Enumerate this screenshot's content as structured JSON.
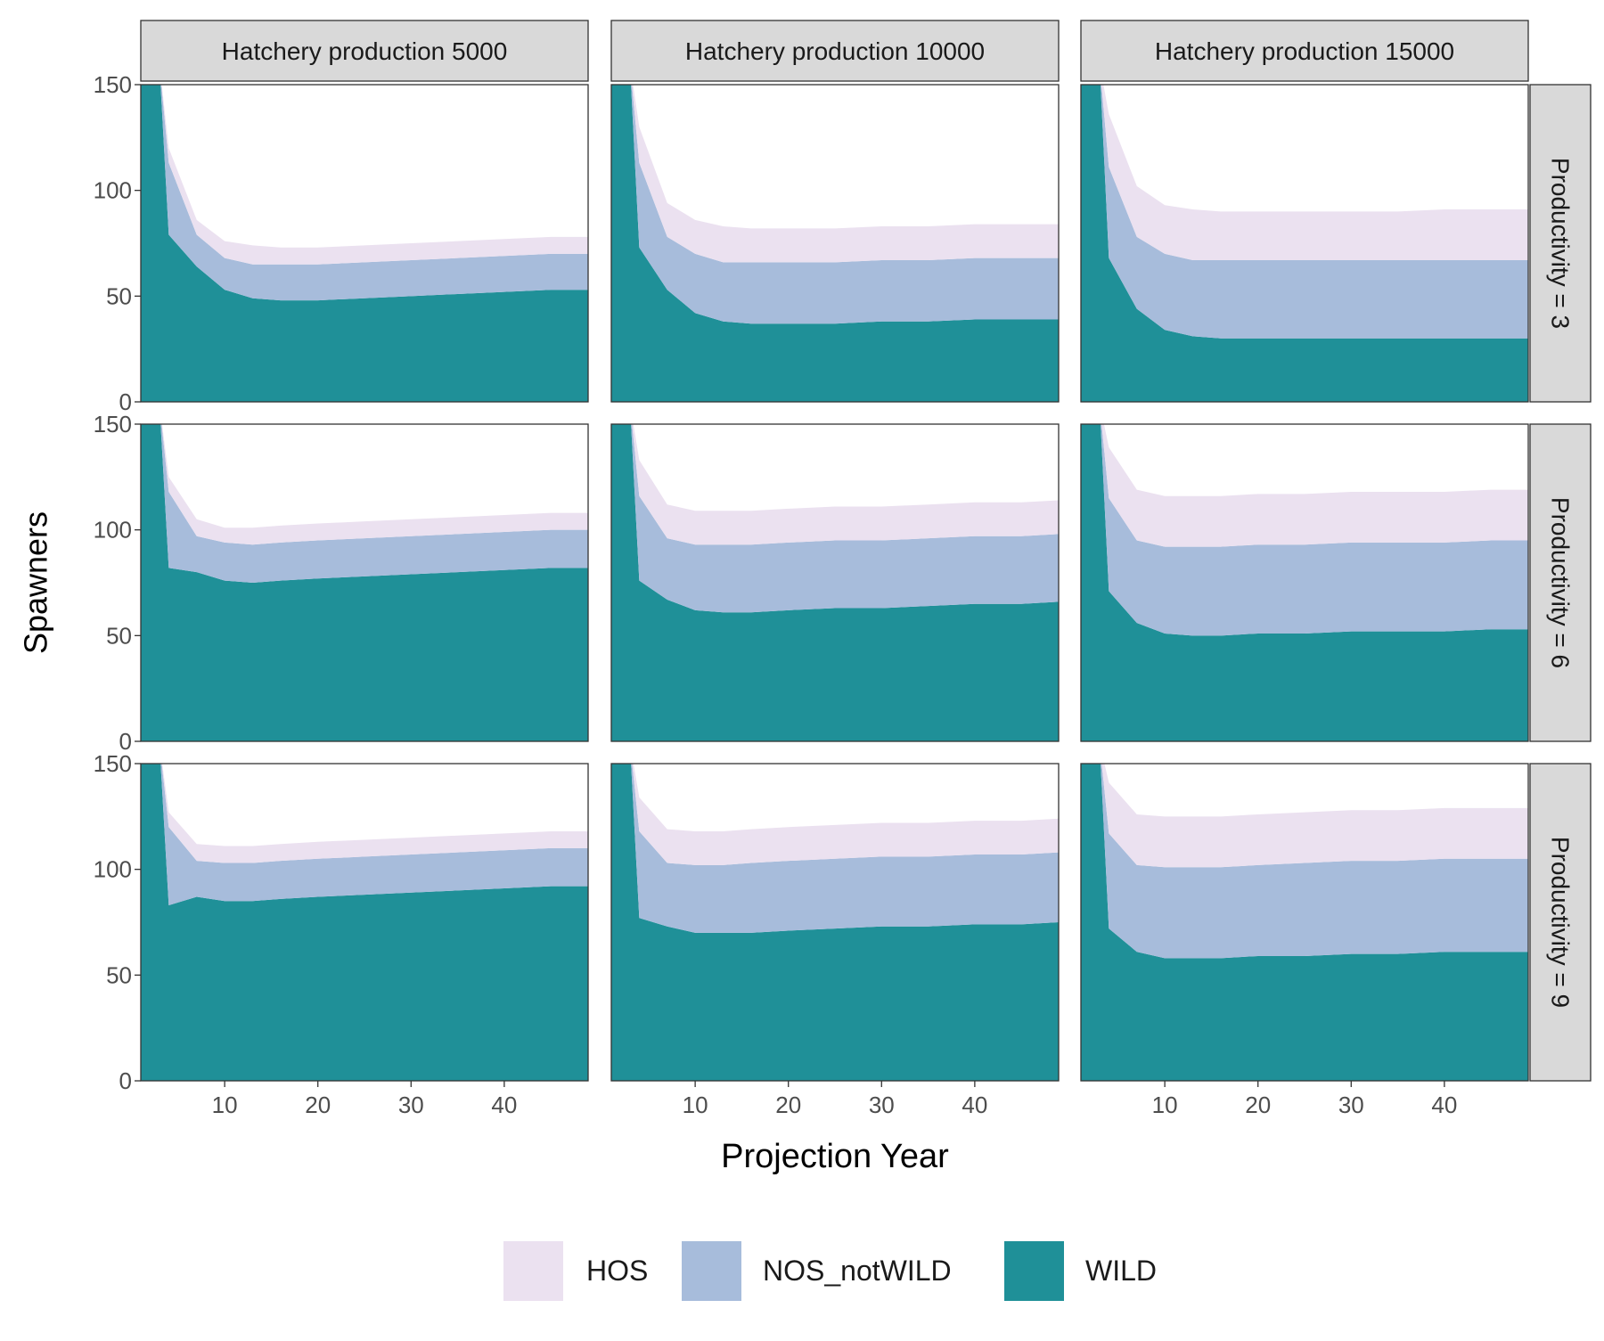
{
  "chart_data": {
    "type": "area",
    "stacked": true,
    "xlabel": "Projection Year",
    "ylabel": "Spawners",
    "xlim": [
      1,
      49
    ],
    "ylim": [
      0,
      150
    ],
    "x_ticks": [
      10,
      20,
      30,
      40
    ],
    "y_ticks": [
      0,
      50,
      100,
      150
    ],
    "grid": false,
    "legend_position": "bottom",
    "column_labels": [
      "Hatchery production 5000",
      "Hatchery production 10000",
      "Hatchery production 15000"
    ],
    "row_labels": [
      "Productivity = 3",
      "Productivity = 6",
      "Productivity = 9"
    ],
    "series_order": [
      "WILD",
      "NOS_notWILD",
      "HOS"
    ],
    "legend": [
      {
        "name": "HOS",
        "color": "#ebe1f0"
      },
      {
        "name": "NOS_notWILD",
        "color": "#a7bcdb"
      },
      {
        "name": "WILD",
        "color": "#1f9098"
      }
    ],
    "x": [
      1,
      3,
      4,
      7,
      10,
      13,
      16,
      20,
      25,
      30,
      35,
      40,
      45,
      49
    ],
    "panels": [
      {
        "row": 0,
        "col": 0,
        "WILD": [
          160,
          160,
          79,
          64,
          53,
          49,
          48,
          48,
          49,
          50,
          51,
          52,
          53,
          53
        ],
        "NOS_notWILD": [
          0,
          0,
          34,
          15,
          15,
          16,
          17,
          17,
          17,
          17,
          17,
          17,
          17,
          17
        ],
        "HOS": [
          0,
          0,
          7,
          7,
          8,
          9,
          8,
          8,
          8,
          8,
          8,
          8,
          8,
          8
        ]
      },
      {
        "row": 0,
        "col": 1,
        "WILD": [
          160,
          160,
          73,
          53,
          42,
          38,
          37,
          37,
          37,
          38,
          38,
          39,
          39,
          39
        ],
        "NOS_notWILD": [
          0,
          0,
          40,
          25,
          28,
          28,
          29,
          29,
          29,
          29,
          29,
          29,
          29,
          29
        ],
        "HOS": [
          0,
          0,
          17,
          16,
          16,
          17,
          16,
          16,
          16,
          16,
          16,
          16,
          16,
          16
        ]
      },
      {
        "row": 0,
        "col": 2,
        "WILD": [
          160,
          160,
          68,
          44,
          34,
          31,
          30,
          30,
          30,
          30,
          30,
          30,
          30,
          30
        ],
        "NOS_notWILD": [
          0,
          0,
          43,
          34,
          36,
          36,
          37,
          37,
          37,
          37,
          37,
          37,
          37,
          37
        ],
        "HOS": [
          0,
          0,
          25,
          24,
          23,
          24,
          23,
          23,
          23,
          23,
          23,
          24,
          24,
          24
        ]
      },
      {
        "row": 1,
        "col": 0,
        "WILD": [
          160,
          160,
          82,
          80,
          76,
          75,
          76,
          77,
          78,
          79,
          80,
          81,
          82,
          82
        ],
        "NOS_notWILD": [
          0,
          0,
          36,
          17,
          18,
          18,
          18,
          18,
          18,
          18,
          18,
          18,
          18,
          18
        ],
        "HOS": [
          0,
          0,
          7,
          8,
          7,
          8,
          8,
          8,
          8,
          8,
          8,
          8,
          8,
          8
        ]
      },
      {
        "row": 1,
        "col": 1,
        "WILD": [
          160,
          160,
          76,
          67,
          62,
          61,
          61,
          62,
          63,
          63,
          64,
          65,
          65,
          66
        ],
        "NOS_notWILD": [
          0,
          0,
          40,
          29,
          31,
          32,
          32,
          32,
          32,
          32,
          32,
          32,
          32,
          32
        ],
        "HOS": [
          0,
          0,
          17,
          16,
          16,
          16,
          16,
          16,
          16,
          16,
          16,
          16,
          16,
          16
        ]
      },
      {
        "row": 1,
        "col": 2,
        "WILD": [
          160,
          160,
          71,
          56,
          51,
          50,
          50,
          51,
          51,
          52,
          52,
          52,
          53,
          53
        ],
        "NOS_notWILD": [
          0,
          0,
          44,
          39,
          41,
          42,
          42,
          42,
          42,
          42,
          42,
          42,
          42,
          42
        ],
        "HOS": [
          0,
          0,
          24,
          24,
          24,
          24,
          24,
          24,
          24,
          24,
          24,
          24,
          24,
          24
        ]
      },
      {
        "row": 2,
        "col": 0,
        "WILD": [
          160,
          160,
          83,
          87,
          85,
          85,
          86,
          87,
          88,
          89,
          90,
          91,
          92,
          92
        ],
        "NOS_notWILD": [
          0,
          0,
          37,
          17,
          18,
          18,
          18,
          18,
          18,
          18,
          18,
          18,
          18,
          18
        ],
        "HOS": [
          0,
          0,
          7,
          8,
          8,
          8,
          8,
          8,
          8,
          8,
          8,
          8,
          8,
          8
        ]
      },
      {
        "row": 2,
        "col": 1,
        "WILD": [
          160,
          160,
          77,
          73,
          70,
          70,
          70,
          71,
          72,
          73,
          73,
          74,
          74,
          75
        ],
        "NOS_notWILD": [
          0,
          0,
          41,
          30,
          32,
          32,
          33,
          33,
          33,
          33,
          33,
          33,
          33,
          33
        ],
        "HOS": [
          0,
          0,
          16,
          16,
          16,
          16,
          16,
          16,
          16,
          16,
          16,
          16,
          16,
          16
        ]
      },
      {
        "row": 2,
        "col": 2,
        "WILD": [
          160,
          160,
          72,
          61,
          58,
          58,
          58,
          59,
          59,
          60,
          60,
          61,
          61,
          61
        ],
        "NOS_notWILD": [
          0,
          0,
          45,
          41,
          43,
          43,
          43,
          43,
          44,
          44,
          44,
          44,
          44,
          44
        ],
        "HOS": [
          0,
          0,
          24,
          24,
          24,
          24,
          24,
          24,
          24,
          24,
          24,
          24,
          24,
          24
        ]
      }
    ]
  }
}
